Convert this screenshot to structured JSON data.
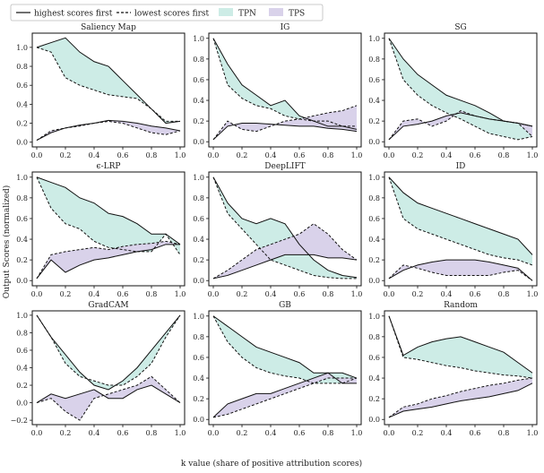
{
  "figure": {
    "ylabel": "Output Scores (normalized)",
    "xlabel": "k value (share of positive attribution scores)",
    "legend": {
      "placement": "top-left",
      "items": [
        {
          "label": "highest scores first",
          "kind": "line-solid"
        },
        {
          "label": "lowest scores first",
          "kind": "line-dashed"
        },
        {
          "label": "TPN",
          "kind": "fill",
          "color": "#cdece6"
        },
        {
          "label": "TPS",
          "kind": "fill",
          "color": "#d9d2ea"
        }
      ]
    },
    "colors": {
      "tpn": "#cdece6",
      "tps": "#d9d2ea",
      "line": "#111111"
    }
  },
  "chart_data": [
    {
      "type": "line",
      "title": "Saliency Map",
      "xlim": [
        0,
        1
      ],
      "ylim": [
        -0.05,
        1.15
      ],
      "xticks": [
        "0.0",
        "0.2",
        "0.4",
        "0.6",
        "0.8",
        "1.0"
      ],
      "yticks": [
        0.0,
        0.2,
        0.4,
        0.6,
        0.8,
        1.0
      ],
      "ytick_labels": [
        "0.0",
        "0.2",
        "0.4",
        "0.6",
        "0.8",
        "1.0"
      ],
      "x": [
        0,
        0.1,
        0.2,
        0.3,
        0.4,
        0.5,
        0.6,
        0.7,
        0.8,
        0.9,
        1.0
      ],
      "series": [
        {
          "name": "highest scores first",
          "group": "top",
          "style": "solid",
          "values": [
            1.0,
            1.05,
            1.1,
            0.95,
            0.85,
            0.8,
            0.65,
            0.5,
            0.35,
            0.2,
            0.22
          ]
        },
        {
          "name": "lowest scores first",
          "group": "top",
          "style": "dashed",
          "values": [
            1.0,
            0.95,
            0.68,
            0.6,
            0.55,
            0.5,
            0.48,
            0.46,
            0.35,
            0.22,
            0.22
          ]
        },
        {
          "name": "highest scores first",
          "group": "bottom",
          "style": "solid",
          "values": [
            0.02,
            0.1,
            0.15,
            0.18,
            0.2,
            0.23,
            0.22,
            0.2,
            0.17,
            0.15,
            0.12
          ]
        },
        {
          "name": "lowest scores first",
          "group": "bottom",
          "style": "dashed",
          "values": [
            0.02,
            0.12,
            0.15,
            0.17,
            0.2,
            0.22,
            0.2,
            0.15,
            0.1,
            0.08,
            0.12
          ]
        }
      ]
    },
    {
      "type": "line",
      "title": "IG",
      "xlim": [
        0,
        1
      ],
      "ylim": [
        -0.05,
        1.05
      ],
      "xticks": [
        "0.0",
        "0.2",
        "0.4",
        "0.6",
        "0.8",
        "1.0"
      ],
      "yticks": [
        0.0,
        0.2,
        0.4,
        0.6,
        0.8,
        1.0
      ],
      "ytick_labels": [
        "0.0",
        "0.2",
        "0.4",
        "0.6",
        "0.8",
        "1.0"
      ],
      "x": [
        0,
        0.1,
        0.2,
        0.3,
        0.4,
        0.5,
        0.6,
        0.7,
        0.8,
        0.9,
        1.0
      ],
      "series": [
        {
          "name": "highest scores first",
          "group": "top",
          "style": "solid",
          "values": [
            1.0,
            0.75,
            0.55,
            0.45,
            0.35,
            0.4,
            0.25,
            0.2,
            0.15,
            0.15,
            0.12
          ]
        },
        {
          "name": "lowest scores first",
          "group": "top",
          "style": "dashed",
          "values": [
            1.0,
            0.55,
            0.42,
            0.35,
            0.32,
            0.25,
            0.22,
            0.2,
            0.2,
            0.15,
            0.15
          ]
        },
        {
          "name": "highest scores first",
          "group": "bottom",
          "style": "solid",
          "values": [
            0.02,
            0.15,
            0.18,
            0.18,
            0.17,
            0.16,
            0.15,
            0.15,
            0.13,
            0.12,
            0.1
          ]
        },
        {
          "name": "lowest scores first",
          "group": "bottom",
          "style": "dashed",
          "values": [
            0.02,
            0.2,
            0.12,
            0.1,
            0.15,
            0.2,
            0.22,
            0.25,
            0.28,
            0.3,
            0.35
          ]
        }
      ]
    },
    {
      "type": "line",
      "title": "SG",
      "xlim": [
        0,
        1
      ],
      "ylim": [
        -0.05,
        1.05
      ],
      "xticks": [
        "0.0",
        "0.2",
        "0.4",
        "0.6",
        "0.8",
        "1.0"
      ],
      "yticks": [
        0.0,
        0.2,
        0.4,
        0.6,
        0.8,
        1.0
      ],
      "ytick_labels": [
        "0.0",
        "0.2",
        "0.4",
        "0.6",
        "0.8",
        "1.0"
      ],
      "x": [
        0,
        0.1,
        0.2,
        0.3,
        0.4,
        0.5,
        0.6,
        0.7,
        0.8,
        0.9,
        1.0
      ],
      "series": [
        {
          "name": "highest scores first",
          "group": "top",
          "style": "solid",
          "values": [
            1.0,
            0.8,
            0.65,
            0.55,
            0.45,
            0.4,
            0.35,
            0.28,
            0.2,
            0.18,
            0.15
          ]
        },
        {
          "name": "lowest scores first",
          "group": "top",
          "style": "dashed",
          "values": [
            1.0,
            0.6,
            0.45,
            0.35,
            0.28,
            0.22,
            0.15,
            0.08,
            0.05,
            0.02,
            0.05
          ]
        },
        {
          "name": "highest scores first",
          "group": "bottom",
          "style": "solid",
          "values": [
            0.02,
            0.15,
            0.17,
            0.2,
            0.25,
            0.28,
            0.25,
            0.22,
            0.2,
            0.18,
            0.15
          ]
        },
        {
          "name": "lowest scores first",
          "group": "bottom",
          "style": "dashed",
          "values": [
            0.02,
            0.2,
            0.22,
            0.15,
            0.2,
            0.3,
            0.25,
            0.22,
            0.2,
            0.18,
            0.05
          ]
        }
      ]
    },
    {
      "type": "line",
      "title": "ϵ-LRP",
      "xlim": [
        0,
        1
      ],
      "ylim": [
        -0.05,
        1.05
      ],
      "xticks": [
        "0.0",
        "0.2",
        "0.4",
        "0.6",
        "0.8",
        "1.0"
      ],
      "yticks": [
        0.0,
        0.2,
        0.4,
        0.6,
        0.8,
        1.0
      ],
      "ytick_labels": [
        "0.0",
        "0.2",
        "0.4",
        "0.6",
        "0.8",
        "1.0"
      ],
      "x": [
        0,
        0.1,
        0.2,
        0.3,
        0.4,
        0.5,
        0.6,
        0.7,
        0.8,
        0.9,
        1.0
      ],
      "series": [
        {
          "name": "highest scores first",
          "group": "top",
          "style": "solid",
          "values": [
            1.0,
            0.95,
            0.9,
            0.8,
            0.75,
            0.65,
            0.62,
            0.55,
            0.45,
            0.45,
            0.35
          ]
        },
        {
          "name": "lowest scores first",
          "group": "top",
          "style": "dashed",
          "values": [
            1.0,
            0.7,
            0.55,
            0.5,
            0.38,
            0.32,
            0.3,
            0.28,
            0.28,
            0.45,
            0.25
          ]
        },
        {
          "name": "highest scores first",
          "group": "bottom",
          "style": "solid",
          "values": [
            0.02,
            0.2,
            0.08,
            0.15,
            0.2,
            0.22,
            0.25,
            0.28,
            0.3,
            0.35,
            0.35
          ]
        },
        {
          "name": "lowest scores first",
          "group": "bottom",
          "style": "dashed",
          "values": [
            0.02,
            0.25,
            0.28,
            0.3,
            0.32,
            0.3,
            0.33,
            0.35,
            0.36,
            0.38,
            0.35
          ]
        }
      ]
    },
    {
      "type": "line",
      "title": "DeepLIFT",
      "xlim": [
        0,
        1
      ],
      "ylim": [
        -0.05,
        1.05
      ],
      "xticks": [
        "0.0",
        "0.2",
        "0.4",
        "0.6",
        "0.8",
        "1.0"
      ],
      "yticks": [
        0.0,
        0.2,
        0.4,
        0.6,
        0.8,
        1.0
      ],
      "ytick_labels": [
        "0.0",
        "0.2",
        "0.4",
        "0.6",
        "0.8",
        "1.0"
      ],
      "x": [
        0,
        0.1,
        0.2,
        0.3,
        0.4,
        0.5,
        0.6,
        0.7,
        0.8,
        0.9,
        1.0
      ],
      "series": [
        {
          "name": "highest scores first",
          "group": "top",
          "style": "solid",
          "values": [
            1.0,
            0.75,
            0.6,
            0.55,
            0.6,
            0.55,
            0.35,
            0.2,
            0.1,
            0.05,
            0.03
          ]
        },
        {
          "name": "lowest scores first",
          "group": "top",
          "style": "dashed",
          "values": [
            1.0,
            0.65,
            0.5,
            0.35,
            0.2,
            0.15,
            0.1,
            0.05,
            0.03,
            0.02,
            0.02
          ]
        },
        {
          "name": "highest scores first",
          "group": "bottom",
          "style": "solid",
          "values": [
            0.02,
            0.05,
            0.1,
            0.15,
            0.2,
            0.25,
            0.25,
            0.25,
            0.22,
            0.22,
            0.2
          ]
        },
        {
          "name": "lowest scores first",
          "group": "bottom",
          "style": "dashed",
          "values": [
            0.02,
            0.1,
            0.2,
            0.3,
            0.35,
            0.4,
            0.45,
            0.55,
            0.45,
            0.3,
            0.2
          ]
        }
      ]
    },
    {
      "type": "line",
      "title": "ID",
      "xlim": [
        0,
        1
      ],
      "ylim": [
        -0.05,
        1.05
      ],
      "xticks": [
        "0.0",
        "0.2",
        "0.4",
        "0.6",
        "0.8",
        "1.0"
      ],
      "yticks": [
        0.0,
        0.2,
        0.4,
        0.6,
        0.8,
        1.0
      ],
      "ytick_labels": [
        "0.0",
        "0.2",
        "0.4",
        "0.6",
        "0.8",
        "1.0"
      ],
      "x": [
        0,
        0.1,
        0.2,
        0.3,
        0.4,
        0.5,
        0.6,
        0.7,
        0.8,
        0.9,
        1.0
      ],
      "series": [
        {
          "name": "highest scores first",
          "group": "top",
          "style": "solid",
          "values": [
            1.0,
            0.85,
            0.75,
            0.7,
            0.65,
            0.6,
            0.55,
            0.5,
            0.45,
            0.4,
            0.25
          ]
        },
        {
          "name": "lowest scores first",
          "group": "top",
          "style": "dashed",
          "values": [
            1.0,
            0.6,
            0.5,
            0.45,
            0.4,
            0.35,
            0.3,
            0.25,
            0.22,
            0.2,
            0.15
          ]
        },
        {
          "name": "highest scores first",
          "group": "bottom",
          "style": "solid",
          "values": [
            0.02,
            0.1,
            0.15,
            0.18,
            0.2,
            0.2,
            0.2,
            0.18,
            0.15,
            0.12,
            0.0
          ]
        },
        {
          "name": "lowest scores first",
          "group": "bottom",
          "style": "dashed",
          "values": [
            0.02,
            0.15,
            0.12,
            0.08,
            0.05,
            0.05,
            0.05,
            0.05,
            0.08,
            0.1,
            0.0
          ]
        }
      ]
    },
    {
      "type": "line",
      "title": "GradCAM",
      "xlim": [
        0,
        1
      ],
      "ylim": [
        -0.25,
        1.05
      ],
      "xticks": [
        "0.0",
        "0.2",
        "0.4",
        "0.6",
        "0.8",
        "1.0"
      ],
      "yticks": [
        -0.2,
        0.0,
        0.2,
        0.4,
        0.6,
        0.8,
        1.0
      ],
      "ytick_labels": [
        "−0.2",
        "0.0",
        "0.2",
        "0.4",
        "0.6",
        "0.8",
        "1.0"
      ],
      "x": [
        0,
        0.1,
        0.2,
        0.3,
        0.4,
        0.5,
        0.6,
        0.7,
        0.8,
        0.9,
        1.0
      ],
      "series": [
        {
          "name": "highest scores first",
          "group": "top",
          "style": "solid",
          "values": [
            1.0,
            0.75,
            0.55,
            0.35,
            0.2,
            0.15,
            0.25,
            0.4,
            0.6,
            0.8,
            1.0
          ]
        },
        {
          "name": "lowest scores first",
          "group": "top",
          "style": "dashed",
          "values": [
            1.0,
            0.75,
            0.45,
            0.3,
            0.25,
            0.2,
            0.2,
            0.3,
            0.45,
            0.75,
            1.0
          ]
        },
        {
          "name": "highest scores first",
          "group": "bottom",
          "style": "solid",
          "values": [
            0.0,
            0.1,
            0.05,
            0.1,
            0.15,
            0.05,
            0.05,
            0.15,
            0.2,
            0.1,
            0.0
          ]
        },
        {
          "name": "lowest scores first",
          "group": "bottom",
          "style": "dashed",
          "values": [
            0.0,
            0.05,
            -0.1,
            -0.2,
            0.05,
            0.1,
            0.15,
            0.2,
            0.3,
            0.15,
            0.0
          ]
        }
      ]
    },
    {
      "type": "line",
      "title": "GB",
      "xlim": [
        0,
        1
      ],
      "ylim": [
        -0.05,
        1.05
      ],
      "xticks": [
        "0.0",
        "0.2",
        "0.4",
        "0.6",
        "0.8",
        "1.0"
      ],
      "yticks": [
        0.0,
        0.2,
        0.4,
        0.6,
        0.8,
        1.0
      ],
      "ytick_labels": [
        "0.0",
        "0.2",
        "0.4",
        "0.6",
        "0.8",
        "1.0"
      ],
      "x": [
        0,
        0.1,
        0.2,
        0.3,
        0.4,
        0.5,
        0.6,
        0.7,
        0.8,
        0.9,
        1.0
      ],
      "series": [
        {
          "name": "highest scores first",
          "group": "top",
          "style": "solid",
          "values": [
            1.0,
            0.9,
            0.8,
            0.7,
            0.65,
            0.6,
            0.55,
            0.45,
            0.45,
            0.45,
            0.4
          ]
        },
        {
          "name": "lowest scores first",
          "group": "top",
          "style": "dashed",
          "values": [
            1.0,
            0.75,
            0.6,
            0.5,
            0.45,
            0.42,
            0.4,
            0.35,
            0.35,
            0.35,
            0.4
          ]
        },
        {
          "name": "highest scores first",
          "group": "bottom",
          "style": "solid",
          "values": [
            0.02,
            0.15,
            0.2,
            0.25,
            0.25,
            0.3,
            0.35,
            0.4,
            0.45,
            0.35,
            0.35
          ]
        },
        {
          "name": "lowest scores first",
          "group": "bottom",
          "style": "dashed",
          "values": [
            0.02,
            0.05,
            0.1,
            0.15,
            0.2,
            0.25,
            0.3,
            0.35,
            0.4,
            0.4,
            0.4
          ]
        }
      ]
    },
    {
      "type": "line",
      "title": "Random",
      "xlim": [
        0,
        1
      ],
      "ylim": [
        -0.05,
        1.05
      ],
      "xticks": [
        "0.0",
        "0.2",
        "0.4",
        "0.6",
        "0.8",
        "1.0"
      ],
      "yticks": [
        0.0,
        0.2,
        0.4,
        0.6,
        0.8,
        1.0
      ],
      "ytick_labels": [
        "0.0",
        "0.2",
        "0.4",
        "0.6",
        "0.8",
        "1.0"
      ],
      "x": [
        0,
        0.1,
        0.2,
        0.3,
        0.4,
        0.5,
        0.6,
        0.7,
        0.8,
        0.9,
        1.0
      ],
      "series": [
        {
          "name": "highest scores first",
          "group": "top",
          "style": "solid",
          "values": [
            1.0,
            0.62,
            0.7,
            0.75,
            0.78,
            0.8,
            0.75,
            0.7,
            0.65,
            0.55,
            0.45
          ]
        },
        {
          "name": "lowest scores first",
          "group": "top",
          "style": "dashed",
          "values": [
            1.0,
            0.6,
            0.58,
            0.55,
            0.52,
            0.5,
            0.47,
            0.45,
            0.43,
            0.42,
            0.4
          ]
        },
        {
          "name": "highest scores first",
          "group": "bottom",
          "style": "solid",
          "values": [
            0.02,
            0.08,
            0.1,
            0.12,
            0.15,
            0.18,
            0.2,
            0.22,
            0.25,
            0.28,
            0.35
          ]
        },
        {
          "name": "lowest scores first",
          "group": "bottom",
          "style": "dashed",
          "values": [
            0.02,
            0.12,
            0.15,
            0.2,
            0.23,
            0.27,
            0.3,
            0.33,
            0.35,
            0.38,
            0.4
          ]
        }
      ]
    }
  ]
}
